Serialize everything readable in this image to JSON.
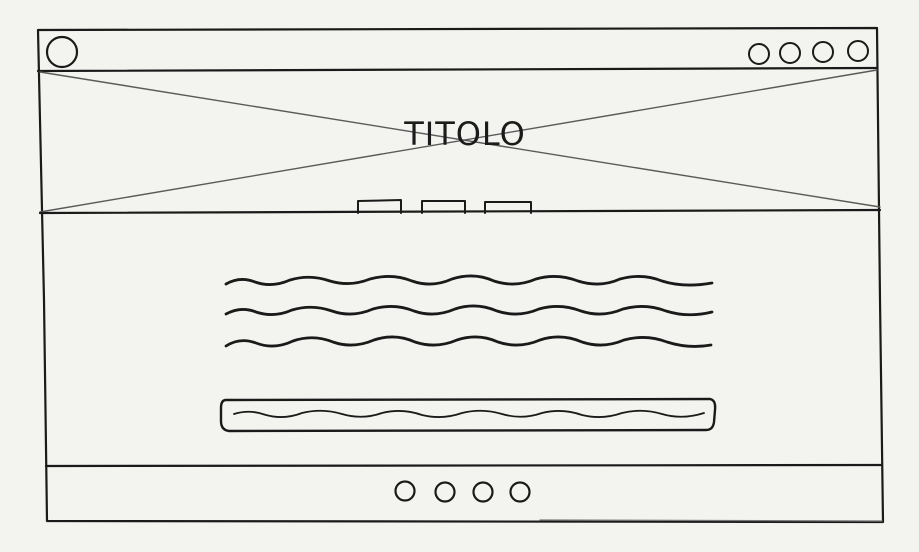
{
  "hero": {
    "title": "TITOLO"
  }
}
